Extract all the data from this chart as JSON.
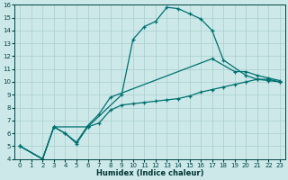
{
  "background_color": "#cce8e8",
  "grid_color": "#aacece",
  "line_color": "#007070",
  "x_label": "Humidex (Indice chaleur)",
  "xlim": [
    -0.5,
    23.5
  ],
  "ylim": [
    4,
    16
  ],
  "yticks": [
    4,
    5,
    6,
    7,
    8,
    9,
    10,
    11,
    12,
    13,
    14,
    15,
    16
  ],
  "xticks": [
    0,
    1,
    2,
    3,
    4,
    5,
    6,
    7,
    8,
    9,
    10,
    11,
    12,
    13,
    14,
    15,
    16,
    17,
    18,
    19,
    20,
    21,
    22,
    23
  ],
  "series": [
    {
      "x": [
        0,
        2,
        3,
        6,
        9,
        10,
        11,
        12,
        13,
        14,
        15,
        16,
        17,
        18,
        20,
        21,
        22,
        23
      ],
      "y": [
        5.0,
        4.0,
        6.5,
        6.5,
        9.0,
        13.3,
        14.3,
        14.7,
        15.8,
        15.7,
        15.3,
        14.9,
        14.0,
        11.7,
        10.5,
        10.2,
        10.1,
        10.0
      ]
    },
    {
      "x": [
        0,
        2,
        3,
        4,
        5,
        6,
        7,
        8,
        17,
        19,
        20,
        21,
        22,
        23
      ],
      "y": [
        5.0,
        4.0,
        6.5,
        6.0,
        5.3,
        6.6,
        7.5,
        8.8,
        11.8,
        10.8,
        10.8,
        10.5,
        10.3,
        10.1
      ]
    },
    {
      "x": [
        0,
        2,
        3,
        4,
        5,
        6,
        7,
        8,
        9,
        10,
        11,
        12,
        13,
        14,
        15,
        16,
        17,
        18,
        19,
        20,
        21,
        22,
        23
      ],
      "y": [
        5.0,
        4.0,
        6.5,
        6.0,
        5.2,
        6.5,
        6.8,
        7.8,
        8.2,
        8.3,
        8.4,
        8.5,
        8.6,
        8.7,
        8.9,
        9.2,
        9.4,
        9.6,
        9.8,
        10.0,
        10.2,
        10.2,
        10.0
      ]
    }
  ]
}
